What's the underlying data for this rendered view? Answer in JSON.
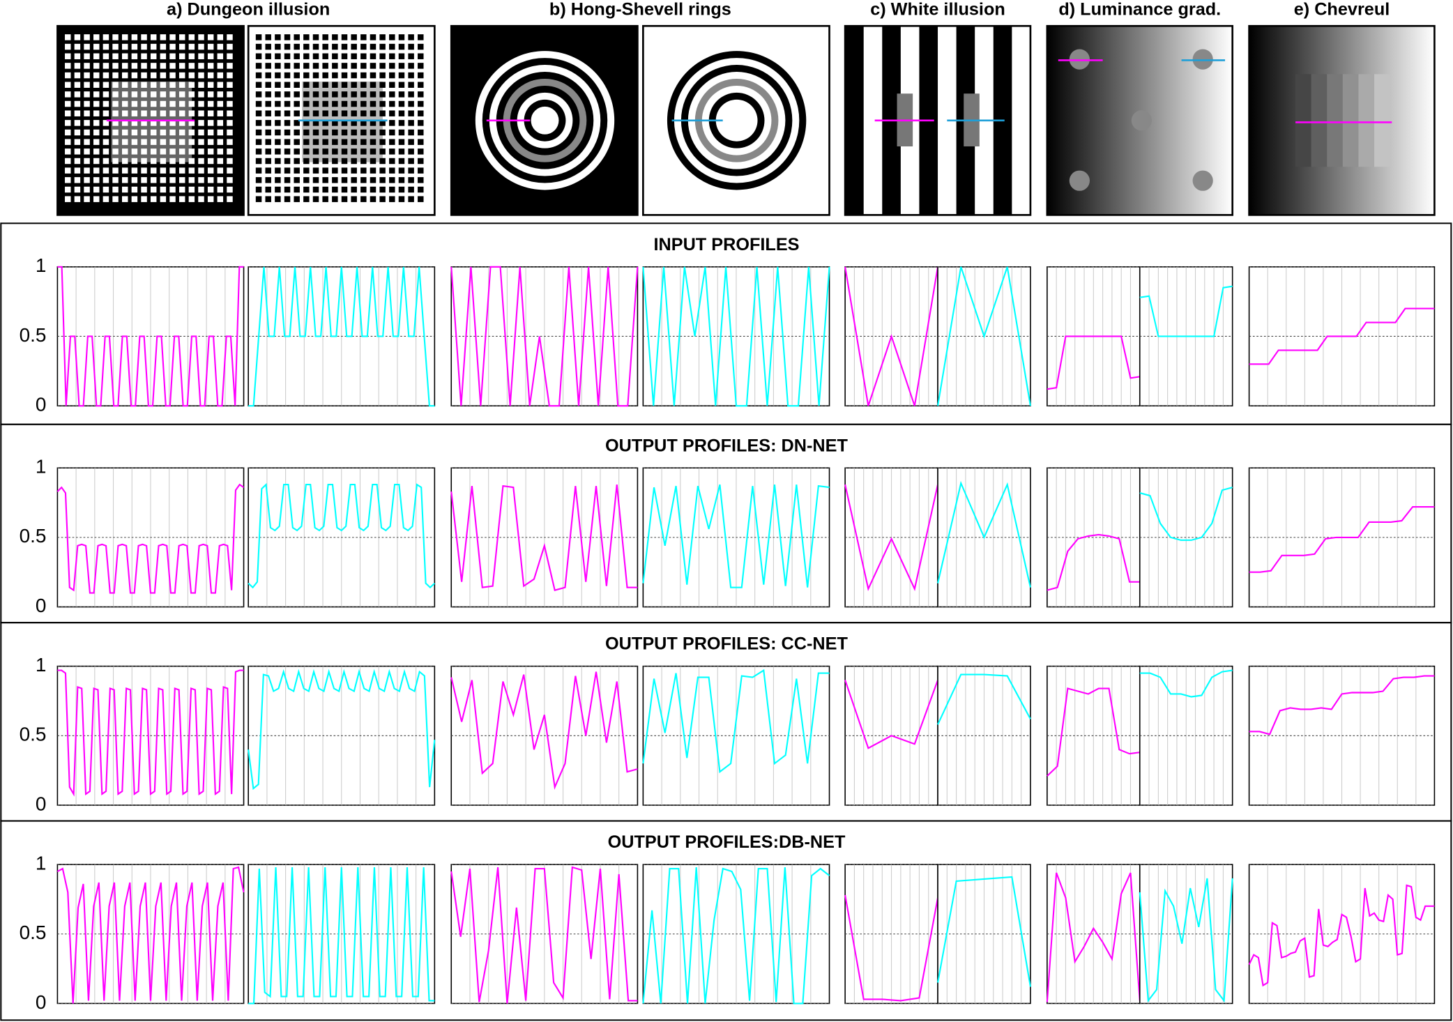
{
  "illusions": {
    "titles": [
      "a) Dungeon illusion",
      "b) Hong-Shevell rings",
      "c) White illusion",
      "d) Luminance grad.",
      "e) Chevreul"
    ]
  },
  "chart_data": [
    {
      "type": "line",
      "title": "INPUT PROFILES",
      "ylim": [
        0,
        1
      ],
      "yticks": [
        0,
        0.5,
        1
      ],
      "grid": true,
      "series": [
        {
          "color": "#ff00ff",
          "values": [
            1,
            1,
            0,
            0.5,
            0.5,
            0,
            0,
            0.5,
            0.5,
            0,
            0,
            0.5,
            0.5,
            0,
            0,
            0.5,
            0.5,
            0,
            0,
            0.5,
            0.5,
            0,
            0,
            0.5,
            0.5,
            0,
            0,
            0.5,
            0.5,
            0,
            0,
            0.5,
            0.5,
            0,
            0,
            0.5,
            0.5,
            0,
            0,
            0.5,
            0.5,
            0,
            1,
            1
          ]
        },
        {
          "color": "#00ffff",
          "values": [
            0,
            0,
            0.5,
            1,
            0.5,
            0.5,
            1,
            0.5,
            0.5,
            1,
            0.5,
            0.5,
            1,
            0.5,
            0.5,
            1,
            0.5,
            0.5,
            1,
            0.5,
            0.5,
            1,
            0.5,
            0.5,
            1,
            0.5,
            0.5,
            1,
            0.5,
            0.5,
            1,
            0.5,
            0.5,
            1,
            0.5,
            0,
            0
          ]
        },
        {
          "color": "#ff00ff",
          "values": [
            1,
            0,
            1,
            0,
            1,
            1,
            0,
            1,
            0,
            0.5,
            0,
            0,
            1,
            0,
            1,
            0,
            1,
            0,
            0,
            1
          ]
        },
        {
          "color": "#00ffff",
          "values": [
            1,
            0,
            1,
            0,
            1,
            0.5,
            1,
            0,
            1,
            0,
            0,
            1,
            0,
            1,
            0,
            0,
            1,
            0,
            1
          ]
        },
        {
          "color": "#ff00ff",
          "values": [
            1,
            0,
            0.5,
            0,
            1
          ]
        },
        {
          "color": "#00ffff",
          "values": [
            0,
            1,
            0.5,
            1,
            0
          ]
        },
        {
          "color": "#ff00ff",
          "values": [
            0.12,
            0.13,
            0.5,
            0.5,
            0.5,
            0.5,
            0.5,
            0.5,
            0.5,
            0.2,
            0.21
          ]
        },
        {
          "color": "#00ffff",
          "values": [
            0.78,
            0.79,
            0.5,
            0.5,
            0.5,
            0.5,
            0.5,
            0.5,
            0.5,
            0.85,
            0.86
          ]
        },
        {
          "color": "#ff00ff",
          "values": [
            0.3,
            0.3,
            0.3,
            0.4,
            0.4,
            0.4,
            0.4,
            0.4,
            0.5,
            0.5,
            0.5,
            0.5,
            0.6,
            0.6,
            0.6,
            0.6,
            0.7,
            0.7,
            0.7,
            0.7
          ]
        }
      ]
    },
    {
      "type": "line",
      "title": "OUTPUT PROFILES: DN-NET",
      "ylim": [
        0,
        1
      ],
      "yticks": [
        0,
        0.5,
        1
      ],
      "grid": true,
      "series": [
        {
          "color": "#ff00ff",
          "values": [
            0.83,
            0.86,
            0.82,
            0.14,
            0.12,
            0.44,
            0.45,
            0.44,
            0.1,
            0.1,
            0.44,
            0.45,
            0.44,
            0.1,
            0.1,
            0.44,
            0.45,
            0.44,
            0.1,
            0.1,
            0.44,
            0.45,
            0.44,
            0.1,
            0.1,
            0.44,
            0.45,
            0.44,
            0.1,
            0.1,
            0.44,
            0.45,
            0.44,
            0.1,
            0.1,
            0.44,
            0.45,
            0.44,
            0.1,
            0.1,
            0.44,
            0.45,
            0.44,
            0.12,
            0.84,
            0.88,
            0.86
          ]
        },
        {
          "color": "#00ffff",
          "values": [
            0.17,
            0.14,
            0.18,
            0.85,
            0.88,
            0.57,
            0.55,
            0.58,
            0.88,
            0.88,
            0.57,
            0.55,
            0.58,
            0.88,
            0.88,
            0.57,
            0.55,
            0.58,
            0.88,
            0.88,
            0.57,
            0.55,
            0.58,
            0.88,
            0.88,
            0.57,
            0.55,
            0.58,
            0.88,
            0.88,
            0.57,
            0.55,
            0.58,
            0.88,
            0.88,
            0.57,
            0.55,
            0.58,
            0.88,
            0.86,
            0.17,
            0.14,
            0.17
          ]
        },
        {
          "color": "#ff00ff",
          "values": [
            0.83,
            0.18,
            0.87,
            0.14,
            0.15,
            0.87,
            0.86,
            0.15,
            0.2,
            0.44,
            0.12,
            0.14,
            0.87,
            0.18,
            0.87,
            0.15,
            0.88,
            0.14,
            0.14
          ]
        },
        {
          "color": "#00ffff",
          "values": [
            0.17,
            0.86,
            0.44,
            0.87,
            0.16,
            0.87,
            0.56,
            0.88,
            0.14,
            0.14,
            0.87,
            0.16,
            0.88,
            0.15,
            0.88,
            0.14,
            0.87,
            0.86
          ]
        },
        {
          "color": "#ff00ff",
          "values": [
            0.88,
            0.13,
            0.49,
            0.13,
            0.88
          ]
        },
        {
          "color": "#00ffff",
          "values": [
            0.17,
            0.89,
            0.5,
            0.88,
            0.14
          ]
        },
        {
          "color": "#ff00ff",
          "values": [
            0.12,
            0.14,
            0.4,
            0.49,
            0.51,
            0.52,
            0.51,
            0.49,
            0.18,
            0.18
          ]
        },
        {
          "color": "#00ffff",
          "values": [
            0.82,
            0.8,
            0.6,
            0.5,
            0.48,
            0.48,
            0.5,
            0.6,
            0.84,
            0.86
          ]
        },
        {
          "color": "#ff00ff",
          "values": [
            0.25,
            0.25,
            0.26,
            0.37,
            0.37,
            0.37,
            0.38,
            0.49,
            0.5,
            0.5,
            0.5,
            0.61,
            0.61,
            0.61,
            0.62,
            0.72,
            0.72,
            0.72
          ]
        }
      ]
    },
    {
      "type": "line",
      "title": "OUTPUT PROFILES: CC-NET",
      "ylim": [
        0,
        1
      ],
      "yticks": [
        0,
        0.5,
        1
      ],
      "grid": true,
      "series": [
        {
          "color": "#ff00ff",
          "values": [
            0.97,
            0.97,
            0.95,
            0.13,
            0.08,
            0.85,
            0.84,
            0.08,
            0.1,
            0.84,
            0.83,
            0.08,
            0.1,
            0.84,
            0.83,
            0.08,
            0.1,
            0.84,
            0.83,
            0.08,
            0.1,
            0.84,
            0.83,
            0.08,
            0.1,
            0.84,
            0.83,
            0.08,
            0.1,
            0.84,
            0.83,
            0.08,
            0.1,
            0.84,
            0.83,
            0.08,
            0.1,
            0.84,
            0.83,
            0.08,
            0.1,
            0.85,
            0.84,
            0.08,
            0.96,
            0.97,
            0.97
          ]
        },
        {
          "color": "#00ffff",
          "values": [
            0.4,
            0.12,
            0.15,
            0.94,
            0.93,
            0.82,
            0.84,
            0.96,
            0.84,
            0.82,
            0.96,
            0.84,
            0.82,
            0.96,
            0.84,
            0.82,
            0.96,
            0.84,
            0.82,
            0.96,
            0.84,
            0.82,
            0.96,
            0.84,
            0.82,
            0.96,
            0.84,
            0.82,
            0.96,
            0.84,
            0.82,
            0.96,
            0.84,
            0.82,
            0.96,
            0.93,
            0.13,
            0.47
          ]
        },
        {
          "color": "#ff00ff",
          "values": [
            0.92,
            0.6,
            0.9,
            0.23,
            0.3,
            0.89,
            0.65,
            0.94,
            0.4,
            0.65,
            0.13,
            0.3,
            0.93,
            0.5,
            0.96,
            0.45,
            0.89,
            0.24,
            0.26
          ]
        },
        {
          "color": "#00ffff",
          "values": [
            0.3,
            0.91,
            0.52,
            0.95,
            0.34,
            0.92,
            0.92,
            0.24,
            0.3,
            0.93,
            0.92,
            0.97,
            0.3,
            0.36,
            0.91,
            0.3,
            0.95,
            0.95
          ]
        },
        {
          "color": "#ff00ff",
          "values": [
            0.9,
            0.41,
            0.5,
            0.44,
            0.9
          ]
        },
        {
          "color": "#00ffff",
          "values": [
            0.58,
            0.94,
            0.94,
            0.93,
            0.62
          ]
        },
        {
          "color": "#ff00ff",
          "values": [
            0.21,
            0.28,
            0.84,
            0.82,
            0.8,
            0.84,
            0.84,
            0.4,
            0.37,
            0.38
          ]
        },
        {
          "color": "#00ffff",
          "values": [
            0.95,
            0.95,
            0.92,
            0.8,
            0.8,
            0.78,
            0.79,
            0.92,
            0.96,
            0.97
          ]
        },
        {
          "color": "#ff00ff",
          "values": [
            0.53,
            0.53,
            0.51,
            0.68,
            0.7,
            0.69,
            0.69,
            0.7,
            0.69,
            0.8,
            0.81,
            0.81,
            0.81,
            0.82,
            0.91,
            0.92,
            0.92,
            0.93,
            0.93
          ]
        }
      ]
    },
    {
      "type": "line",
      "title": "OUTPUT PROFILES:DB-NET",
      "ylim": [
        0,
        1
      ],
      "yticks": [
        0,
        0.5,
        1
      ],
      "grid": true,
      "series": [
        {
          "color": "#ff00ff",
          "values": [
            0.95,
            0.97,
            0.8,
            0,
            0.69,
            0.86,
            0.02,
            0.7,
            0.87,
            0.02,
            0.7,
            0.87,
            0.02,
            0.7,
            0.87,
            0.02,
            0.7,
            0.87,
            0.02,
            0.7,
            0.87,
            0.02,
            0.7,
            0.87,
            0.02,
            0.7,
            0.87,
            0.02,
            0.7,
            0.87,
            0.02,
            0.7,
            0.87,
            0.02,
            0.97,
            0.98,
            0.8
          ]
        },
        {
          "color": "#00ffff",
          "values": [
            0,
            0,
            0.97,
            0.08,
            0.05,
            0.98,
            0.05,
            0.05,
            0.98,
            0.05,
            0.05,
            0.98,
            0.05,
            0.05,
            0.98,
            0.05,
            0.05,
            0.98,
            0.05,
            0.05,
            0.98,
            0.05,
            0.05,
            0.98,
            0.05,
            0.05,
            0.98,
            0.05,
            0.05,
            0.98,
            0.05,
            0.05,
            0.98,
            0.02,
            0.02
          ]
        },
        {
          "color": "#ff00ff",
          "values": [
            0.95,
            0.48,
            0.97,
            0.01,
            0.38,
            0.98,
            0,
            0.69,
            0.02,
            0.97,
            0.97,
            0.15,
            0.04,
            0.98,
            0.96,
            0.32,
            0.97,
            0.03,
            0.93,
            0.02,
            0.02
          ]
        },
        {
          "color": "#00ffff",
          "values": [
            0,
            0.67,
            0,
            0.97,
            0.97,
            0,
            0.98,
            0,
            0.6,
            0.97,
            0.95,
            0.82,
            0.02,
            0.97,
            0.97,
            0.01,
            0.98,
            0,
            0,
            0.92,
            0.97,
            0.92
          ]
        },
        {
          "color": "#ff00ff",
          "values": [
            0.78,
            0.03,
            0.03,
            0.02,
            0.04,
            0.76
          ]
        },
        {
          "color": "#00ffff",
          "values": [
            0.15,
            0.88,
            0.89,
            0.9,
            0.91,
            0.12
          ]
        },
        {
          "color": "#ff00ff",
          "values": [
            0.01,
            0.94,
            0.76,
            0.3,
            0.41,
            0.54,
            0.44,
            0.32,
            0.79,
            0.94,
            0.02
          ]
        },
        {
          "color": "#00ffff",
          "values": [
            0.8,
            0.02,
            0.1,
            0.81,
            0.7,
            0.43,
            0.83,
            0.55,
            0.9,
            0.1,
            0.02,
            0.9
          ]
        },
        {
          "color": "#ff00ff",
          "values": [
            0.28,
            0.35,
            0.33,
            0.13,
            0.15,
            0.58,
            0.56,
            0.33,
            0.34,
            0.36,
            0.37,
            0.45,
            0.47,
            0.19,
            0.2,
            0.68,
            0.42,
            0.41,
            0.44,
            0.46,
            0.64,
            0.62,
            0.48,
            0.3,
            0.32,
            0.83,
            0.63,
            0.65,
            0.6,
            0.59,
            0.78,
            0.75,
            0.35,
            0.36,
            0.85,
            0.84,
            0.62,
            0.6,
            0.7,
            0.7,
            0.7
          ]
        }
      ]
    }
  ]
}
